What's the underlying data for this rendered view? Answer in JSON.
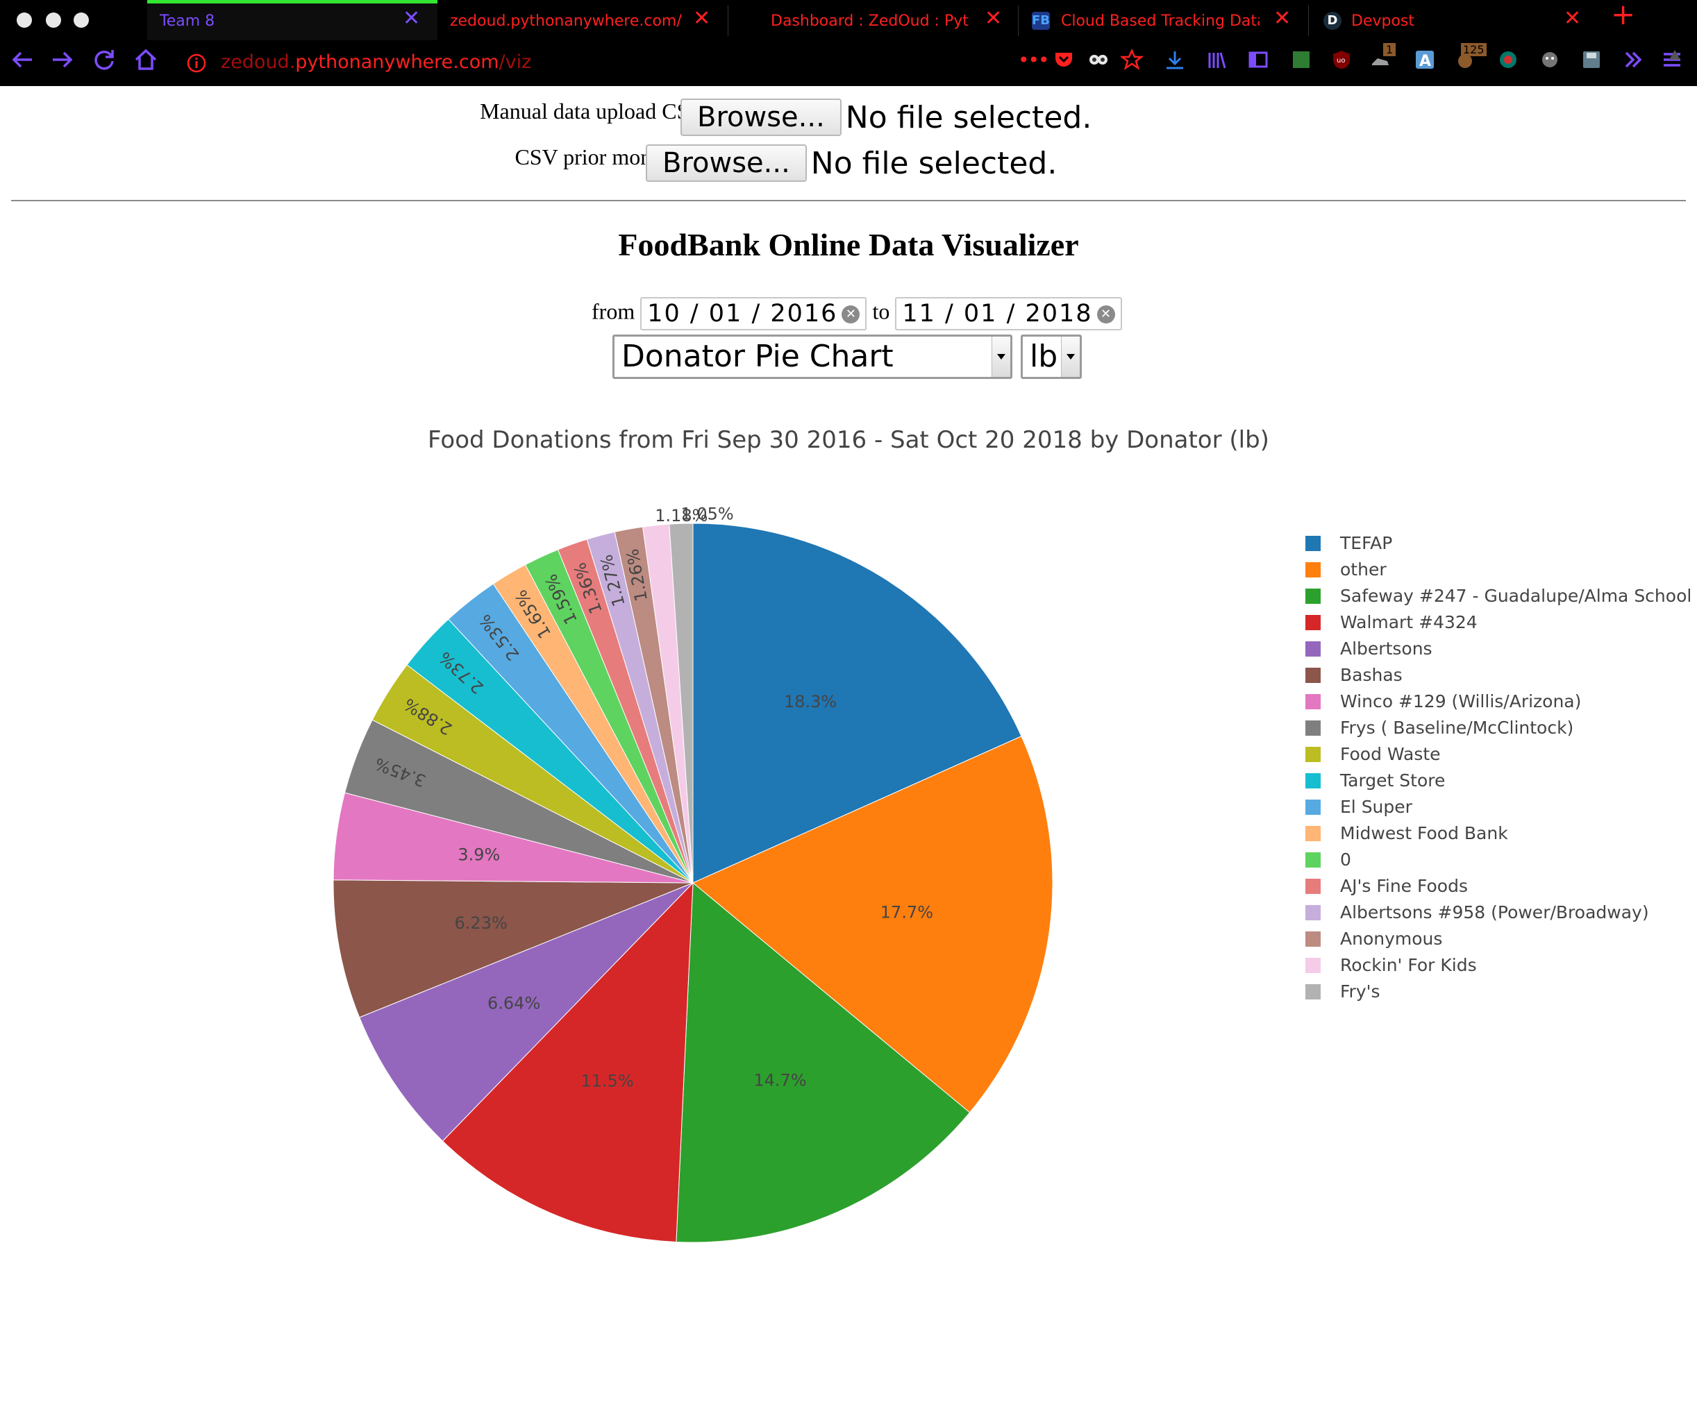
{
  "browser": {
    "tabs": [
      {
        "label": "Team 8",
        "active": true,
        "label_color": "#7c4dff",
        "favicon": ""
      },
      {
        "label": "zedoud.pythonanywhere.com/",
        "active": false,
        "label_color": "#ff2020",
        "favicon": ""
      },
      {
        "label": "Dashboard : ZedOud : Pytho",
        "active": false,
        "label_color": "#ff2020",
        "favicon": ""
      },
      {
        "label": "Cloud Based Tracking Datab",
        "active": false,
        "label_color": "#ff2020",
        "favicon": "FB"
      },
      {
        "label": "Devpost",
        "active": false,
        "label_color": "#ff2020",
        "favicon": "D"
      }
    ],
    "close_glyph": "✕",
    "new_tab_glyph": "+",
    "url_host": "zedoud.",
    "url_domain": "pythonanywhere.com",
    "url_path": "/viz",
    "page_actions": "•••",
    "accent": "#7c4dff",
    "alert_color": "#ff2020",
    "toolbar_badges": [
      "1",
      "125"
    ]
  },
  "upload": {
    "manual_label": "Manual data upload CSV:",
    "prior_label": "CSV prior month:",
    "browse_label": "Browse...",
    "no_file_text": "No file selected."
  },
  "viz": {
    "title": "FoodBank Online Data Visualizer",
    "from_label": "from",
    "to_label": "to",
    "from_date": "10 / 01 / 2016",
    "to_date": "11 / 01 / 2018",
    "chart_select": "Donator Pie Chart",
    "unit_select": "lb"
  },
  "chart_data": {
    "type": "pie",
    "title": "Food Donations from Fri Sep 30 2016 - Sat Oct 20 2018 by Donator (lb)",
    "legend_position": "right",
    "slices": [
      {
        "label": "TEFAP",
        "percent": 18.3,
        "text": "18.3%",
        "color": "#1f77b4"
      },
      {
        "label": "other",
        "percent": 17.7,
        "text": "17.7%",
        "color": "#ff7f0e"
      },
      {
        "label": "Safeway #247 - Guadalupe/Alma School",
        "percent": 14.7,
        "text": "14.7%",
        "color": "#2ca02c"
      },
      {
        "label": "Walmart #4324",
        "percent": 11.5,
        "text": "11.5%",
        "color": "#d62728"
      },
      {
        "label": "Albertsons",
        "percent": 6.64,
        "text": "6.64%",
        "color": "#9467bd"
      },
      {
        "label": "Bashas",
        "percent": 6.23,
        "text": "6.23%",
        "color": "#8c564b"
      },
      {
        "label": "Winco #129 (Willis/Arizona)",
        "percent": 3.9,
        "text": "3.9%",
        "color": "#e377c2"
      },
      {
        "label": "Frys ( Baseline/McClintock)",
        "percent": 3.45,
        "text": "3.45%",
        "color": "#7f7f7f"
      },
      {
        "label": "Food Waste",
        "percent": 2.88,
        "text": "2.88%",
        "color": "#bcbd22"
      },
      {
        "label": "Target Store",
        "percent": 2.73,
        "text": "2.73%",
        "color": "#17becf"
      },
      {
        "label": "El Super",
        "percent": 2.53,
        "text": "2.53%",
        "color": "#57a9e2"
      },
      {
        "label": "Midwest Food Bank",
        "percent": 1.65,
        "text": "1.65%",
        "color": "#ffb574"
      },
      {
        "label": "0",
        "percent": 1.59,
        "text": "1.59%",
        "color": "#5fd35f"
      },
      {
        "label": "AJ's Fine Foods",
        "percent": 1.36,
        "text": "1.36%",
        "color": "#e77c7c"
      },
      {
        "label": "Albertsons #958 (Power/Broadway)",
        "percent": 1.27,
        "text": "1.27%",
        "color": "#c6aedc"
      },
      {
        "label": "Anonymous",
        "percent": 1.26,
        "text": "1.26%",
        "color": "#bc8b81"
      },
      {
        "label": "Rockin' For Kids",
        "percent": 1.18,
        "text": "1.18%",
        "color": "#f4cce8"
      },
      {
        "label": "Fry's",
        "percent": 1.05,
        "text": "1.05%",
        "color": "#b2b2b2"
      }
    ]
  }
}
